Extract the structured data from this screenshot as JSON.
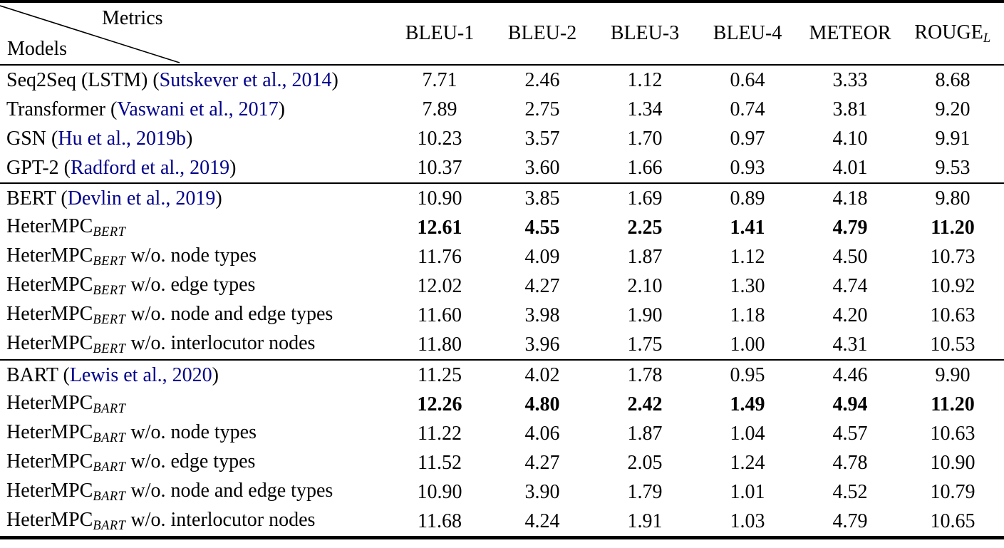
{
  "colors": {
    "citation": "#00008B",
    "text": "#000000",
    "rule": "#000000"
  },
  "header": {
    "corner": {
      "top_label": "Metrics",
      "bottom_label": "Models"
    },
    "columns": [
      {
        "segments": [
          {
            "t": "BLEU-1"
          }
        ]
      },
      {
        "segments": [
          {
            "t": "BLEU-2"
          }
        ]
      },
      {
        "segments": [
          {
            "t": "BLEU-3"
          }
        ]
      },
      {
        "segments": [
          {
            "t": "BLEU-4"
          }
        ]
      },
      {
        "segments": [
          {
            "t": "METEOR"
          }
        ]
      },
      {
        "segments": [
          {
            "t": "ROUGE"
          },
          {
            "t": "L",
            "style": "sub"
          }
        ]
      }
    ]
  },
  "sections": [
    {
      "rows": [
        {
          "model": [
            {
              "t": "Seq2Seq (LSTM) ("
            },
            {
              "t": "Sutskever et al., 2014",
              "style": "cite"
            },
            {
              "t": ")"
            }
          ],
          "values": [
            "7.71",
            "2.46",
            "1.12",
            "0.64",
            "3.33",
            "8.68"
          ],
          "bold": false
        },
        {
          "model": [
            {
              "t": "Transformer ("
            },
            {
              "t": "Vaswani et al., 2017",
              "style": "cite"
            },
            {
              "t": ")"
            }
          ],
          "values": [
            "7.89",
            "2.75",
            "1.34",
            "0.74",
            "3.81",
            "9.20"
          ],
          "bold": false
        },
        {
          "model": [
            {
              "t": "GSN ("
            },
            {
              "t": "Hu et al., 2019b",
              "style": "cite"
            },
            {
              "t": ")"
            }
          ],
          "values": [
            "10.23",
            "3.57",
            "1.70",
            "0.97",
            "4.10",
            "9.91"
          ],
          "bold": false
        },
        {
          "model": [
            {
              "t": "GPT-2 ("
            },
            {
              "t": "Radford et al., 2019",
              "style": "cite"
            },
            {
              "t": ")"
            }
          ],
          "values": [
            "10.37",
            "3.60",
            "1.66",
            "0.93",
            "4.01",
            "9.53"
          ],
          "bold": false
        }
      ]
    },
    {
      "rows": [
        {
          "model": [
            {
              "t": "BERT ("
            },
            {
              "t": "Devlin et al., 2019",
              "style": "cite"
            },
            {
              "t": ")"
            }
          ],
          "values": [
            "10.90",
            "3.85",
            "1.69",
            "0.89",
            "4.18",
            "9.80"
          ],
          "bold": false
        },
        {
          "model": [
            {
              "t": "HeterMPC"
            },
            {
              "t": "BERT",
              "style": "sub"
            }
          ],
          "values": [
            "12.61",
            "4.55",
            "2.25",
            "1.41",
            "4.79",
            "11.20"
          ],
          "bold": true
        },
        {
          "model": [
            {
              "t": "HeterMPC"
            },
            {
              "t": "BERT",
              "style": "sub"
            },
            {
              "t": " w/o. node types"
            }
          ],
          "values": [
            "11.76",
            "4.09",
            "1.87",
            "1.12",
            "4.50",
            "10.73"
          ],
          "bold": false
        },
        {
          "model": [
            {
              "t": "HeterMPC"
            },
            {
              "t": "BERT",
              "style": "sub"
            },
            {
              "t": " w/o. edge types"
            }
          ],
          "values": [
            "12.02",
            "4.27",
            "2.10",
            "1.30",
            "4.74",
            "10.92"
          ],
          "bold": false
        },
        {
          "model": [
            {
              "t": "HeterMPC"
            },
            {
              "t": "BERT",
              "style": "sub"
            },
            {
              "t": " w/o. node and edge types"
            }
          ],
          "values": [
            "11.60",
            "3.98",
            "1.90",
            "1.18",
            "4.20",
            "10.63"
          ],
          "bold": false
        },
        {
          "model": [
            {
              "t": "HeterMPC"
            },
            {
              "t": "BERT",
              "style": "sub"
            },
            {
              "t": " w/o. interlocutor nodes"
            }
          ],
          "values": [
            "11.80",
            "3.96",
            "1.75",
            "1.00",
            "4.31",
            "10.53"
          ],
          "bold": false
        }
      ]
    },
    {
      "rows": [
        {
          "model": [
            {
              "t": "BART ("
            },
            {
              "t": "Lewis et al., 2020",
              "style": "cite"
            },
            {
              "t": ")"
            }
          ],
          "values": [
            "11.25",
            "4.02",
            "1.78",
            "0.95",
            "4.46",
            "9.90"
          ],
          "bold": false
        },
        {
          "model": [
            {
              "t": "HeterMPC"
            },
            {
              "t": "BART",
              "style": "sub"
            }
          ],
          "values": [
            "12.26",
            "4.80",
            "2.42",
            "1.49",
            "4.94",
            "11.20"
          ],
          "bold": true
        },
        {
          "model": [
            {
              "t": "HeterMPC"
            },
            {
              "t": "BART",
              "style": "sub"
            },
            {
              "t": " w/o. node types"
            }
          ],
          "values": [
            "11.22",
            "4.06",
            "1.87",
            "1.04",
            "4.57",
            "10.63"
          ],
          "bold": false
        },
        {
          "model": [
            {
              "t": "HeterMPC"
            },
            {
              "t": "BART",
              "style": "sub"
            },
            {
              "t": " w/o. edge types"
            }
          ],
          "values": [
            "11.52",
            "4.27",
            "2.05",
            "1.24",
            "4.78",
            "10.90"
          ],
          "bold": false
        },
        {
          "model": [
            {
              "t": "HeterMPC"
            },
            {
              "t": "BART",
              "style": "sub"
            },
            {
              "t": " w/o. node and edge types"
            }
          ],
          "values": [
            "10.90",
            "3.90",
            "1.79",
            "1.01",
            "4.52",
            "10.79"
          ],
          "bold": false
        },
        {
          "model": [
            {
              "t": "HeterMPC"
            },
            {
              "t": "BART",
              "style": "sub"
            },
            {
              "t": " w/o. interlocutor nodes"
            }
          ],
          "values": [
            "11.68",
            "4.24",
            "1.91",
            "1.03",
            "4.79",
            "10.65"
          ],
          "bold": false
        }
      ]
    }
  ]
}
